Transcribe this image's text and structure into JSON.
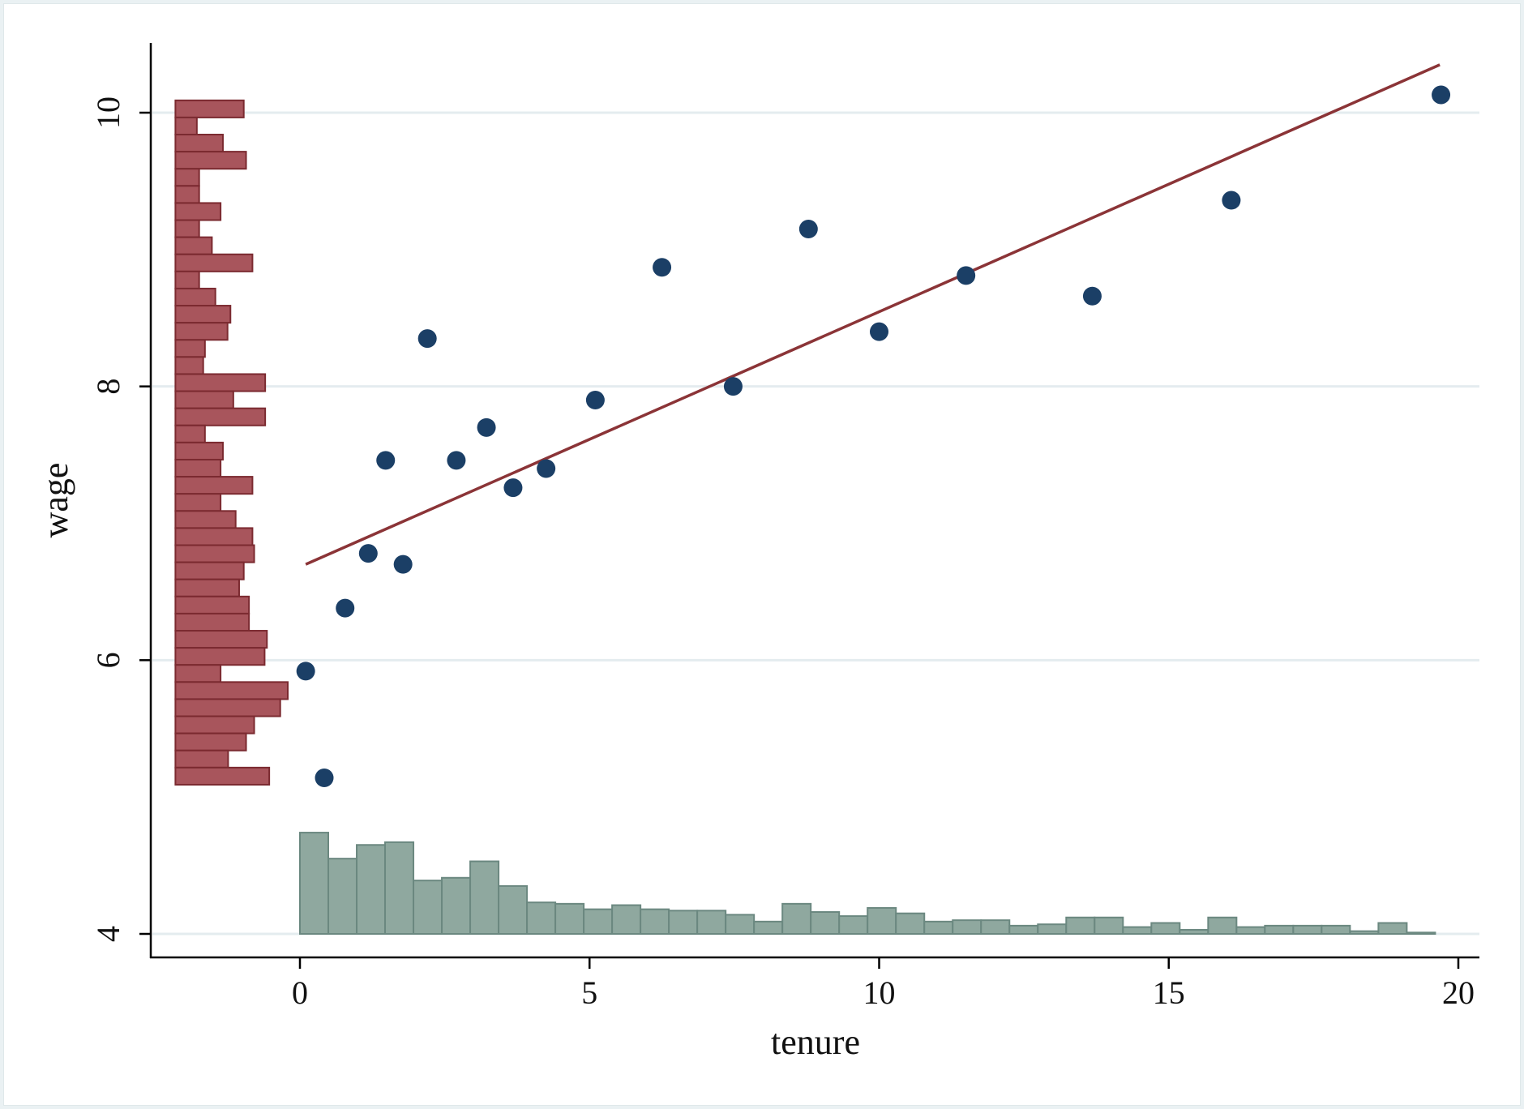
{
  "chart_data": {
    "type": "scatter",
    "title": "",
    "xlabel": "tenure",
    "ylabel": "wage",
    "xlim": [
      -2.6,
      20.4
    ],
    "ylim": [
      3.8,
      10.5
    ],
    "x_ticks": [
      0,
      5,
      10,
      15,
      20
    ],
    "y_ticks": [
      4,
      6,
      8,
      10
    ],
    "grid": "horizontal",
    "legend": "none",
    "colors": {
      "scatter": "#1b3f66",
      "fit_line": "#8b3437",
      "wage_hist_fill": "#a8555c",
      "wage_hist_edge": "#7b2a30",
      "tenure_hist_fill": "#8fa89f",
      "tenure_hist_edge": "#6b8880",
      "grid": "#e4ecef",
      "axis": "#000000"
    },
    "series": [
      {
        "type": "scatter",
        "x": [
          0.1,
          0.42,
          0.78,
          1.18,
          1.48,
          1.78,
          2.2,
          2.7,
          3.22,
          3.68,
          4.25,
          5.1,
          6.25,
          7.48,
          8.78,
          10.0,
          11.5,
          13.68,
          16.08,
          19.7
        ],
        "y": [
          5.92,
          5.14,
          6.38,
          6.78,
          7.46,
          6.7,
          8.35,
          7.46,
          7.7,
          7.26,
          7.4,
          7.9,
          8.87,
          8.0,
          9.15,
          8.4,
          8.81,
          8.66,
          9.36,
          10.13
        ]
      },
      {
        "type": "line",
        "x": [
          0.1,
          19.68
        ],
        "y": [
          6.7,
          10.35
        ]
      },
      {
        "type": "histogram",
        "orientation": "vertical",
        "variable": "tenure",
        "bin_width": 0.49,
        "bin_start": 0,
        "baseline": 4,
        "values": [
          0.74,
          0.55,
          0.65,
          0.67,
          0.39,
          0.41,
          0.53,
          0.35,
          0.23,
          0.22,
          0.18,
          0.21,
          0.18,
          0.17,
          0.17,
          0.14,
          0.09,
          0.22,
          0.16,
          0.13,
          0.19,
          0.15,
          0.09,
          0.1,
          0.1,
          0.06,
          0.07,
          0.12,
          0.12,
          0.05,
          0.08,
          0.03,
          0.12,
          0.05,
          0.06,
          0.06,
          0.06,
          0.02,
          0.08,
          0.01
        ]
      },
      {
        "type": "histogram",
        "orientation": "horizontal",
        "variable": "wage",
        "bin_height": 0.125,
        "top": 10.09,
        "baseline": -2.15,
        "values": [
          1.18,
          0.37,
          0.82,
          1.22,
          0.41,
          0.41,
          0.78,
          0.41,
          0.63,
          1.33,
          0.41,
          0.69,
          0.95,
          0.9,
          0.51,
          0.48,
          1.55,
          1.0,
          1.55,
          0.51,
          0.82,
          0.78,
          1.33,
          0.78,
          1.04,
          1.33,
          1.36,
          1.18,
          1.1,
          1.27,
          1.27,
          1.58,
          1.54,
          0.78,
          1.94,
          1.81,
          1.36,
          1.22,
          0.91,
          1.62
        ]
      }
    ]
  }
}
